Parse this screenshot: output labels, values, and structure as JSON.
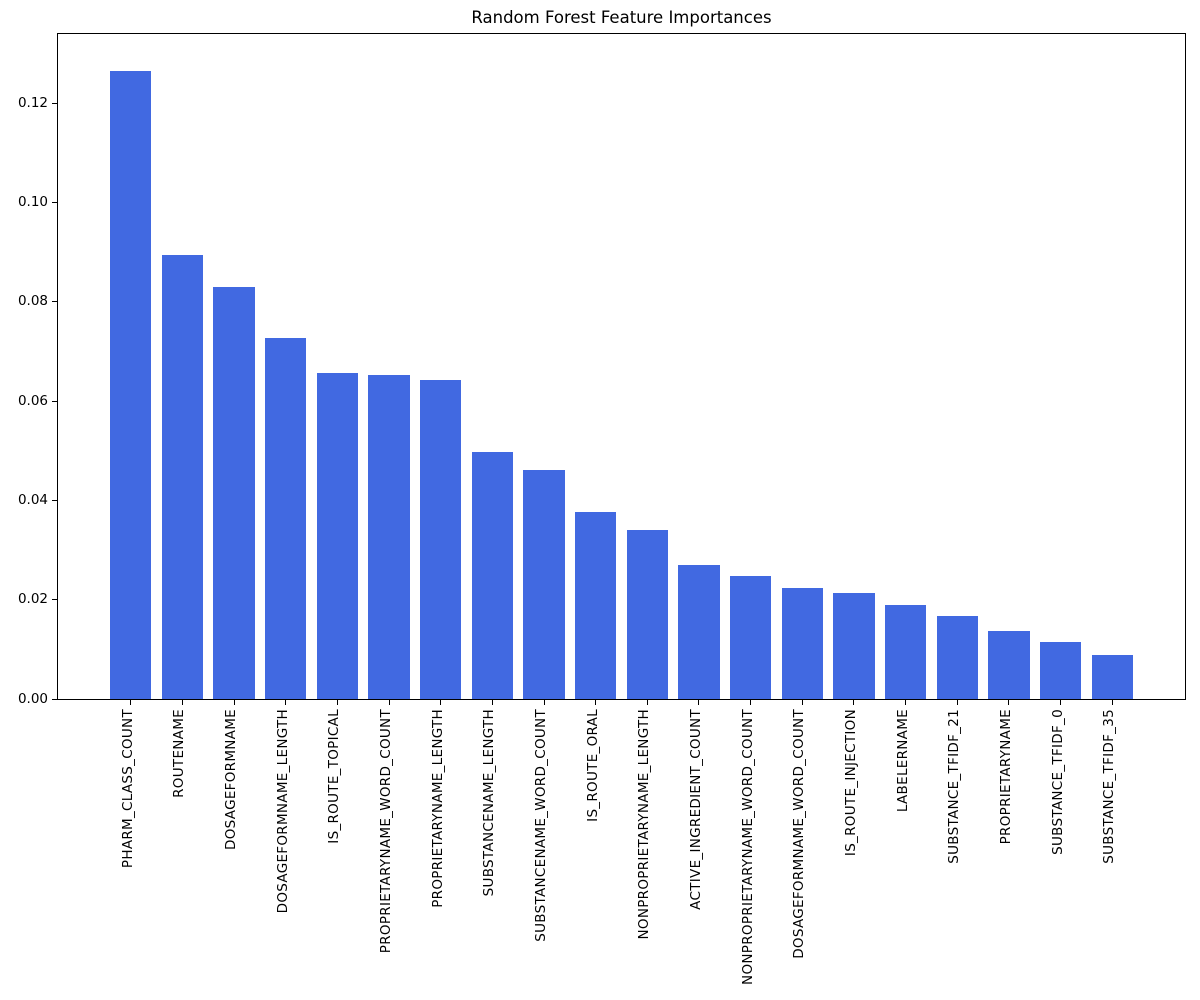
{
  "chart_data": {
    "type": "bar",
    "title": "Random Forest Feature Importances",
    "xlabel": "",
    "ylabel": "",
    "grid": false,
    "legend": null,
    "bar_color": "#4169e1",
    "axis_color": "#000000",
    "text_color": "#000000",
    "ylim": [
      0,
      0.134
    ],
    "yticks": [
      0.0,
      0.02,
      0.04,
      0.06,
      0.08,
      0.1,
      0.12
    ],
    "ytick_labels": [
      "0.00",
      "0.02",
      "0.04",
      "0.06",
      "0.08",
      "0.10",
      "0.12"
    ],
    "categories": [
      "PHARM_CLASS_COUNT",
      "ROUTENAME",
      "DOSAGEFORMNAME",
      "DOSAGEFORMNAME_LENGTH",
      "IS_ROUTE_TOPICAL",
      "PROPRIETARYNAME_WORD_COUNT",
      "PROPRIETARYNAME_LENGTH",
      "SUBSTANCENAME_LENGTH",
      "SUBSTANCENAME_WORD_COUNT",
      "IS_ROUTE_ORAL",
      "NONPROPRIETARYNAME_LENGTH",
      "ACTIVE_INGREDIENT_COUNT",
      "NONPROPRIETARYNAME_WORD_COUNT",
      "DOSAGEFORMNAME_WORD_COUNT",
      "IS_ROUTE_INJECTION",
      "LABELERNAME",
      "SUBSTANCE_TFIDF_21",
      "PROPRIETARYNAME",
      "SUBSTANCE_TFIDF_0",
      "SUBSTANCE_TFIDF_35"
    ],
    "values": [
      0.1265,
      0.0895,
      0.083,
      0.0727,
      0.0656,
      0.0652,
      0.0642,
      0.0498,
      0.0462,
      0.0376,
      0.0341,
      0.0271,
      0.0247,
      0.0224,
      0.0214,
      0.0189,
      0.0167,
      0.0138,
      0.0115,
      0.0089
    ]
  }
}
